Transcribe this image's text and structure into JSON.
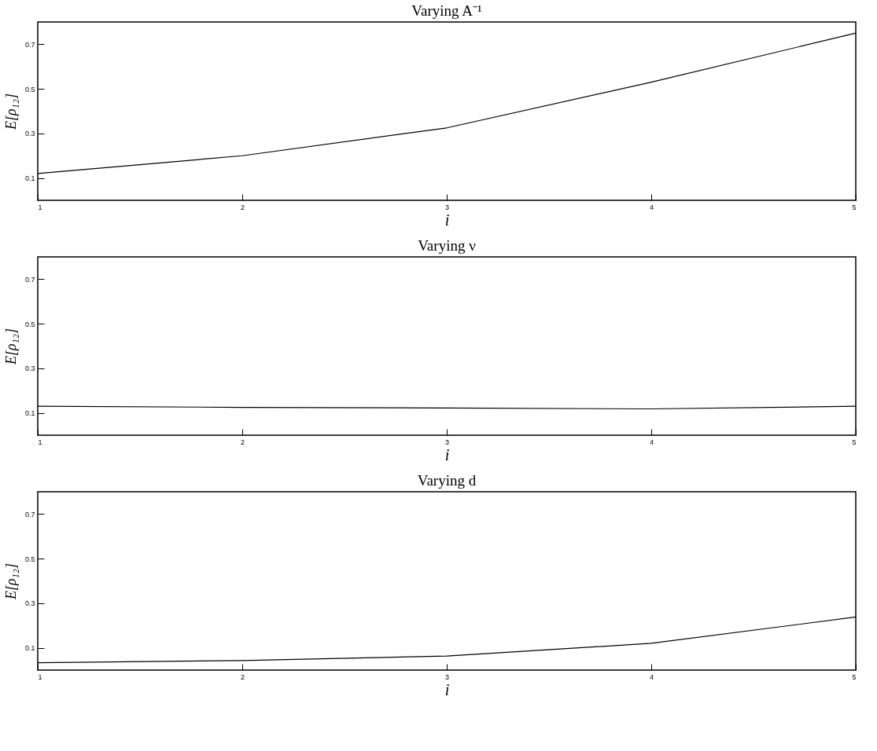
{
  "chart_data": [
    {
      "type": "line",
      "title": "Varying A⁻¹",
      "xlabel": "i",
      "ylabel": "E[ρ₁₂]",
      "x": [
        1,
        2,
        3,
        4,
        5
      ],
      "xlim": [
        1,
        5
      ],
      "xticks": [
        1,
        2,
        3,
        4,
        5
      ],
      "ylim": [
        0,
        0.8
      ],
      "yticks": [
        0.1,
        0.3,
        0.5,
        0.7
      ],
      "series": [
        {
          "color": "#000000",
          "values": [
            0.12,
            0.2,
            0.325,
            0.53,
            0.75
          ]
        }
      ]
    },
    {
      "type": "line",
      "title": "Varying ν",
      "xlabel": "i",
      "ylabel": "E[ρ₁₂]",
      "x": [
        1,
        2,
        3,
        4,
        5
      ],
      "xlim": [
        1,
        5
      ],
      "xticks": [
        1,
        2,
        3,
        4,
        5
      ],
      "ylim": [
        0,
        0.8
      ],
      "yticks": [
        0.1,
        0.3,
        0.5,
        0.7
      ],
      "series": [
        {
          "color": "#000000",
          "values": [
            0.13,
            0.125,
            0.122,
            0.118,
            0.13
          ]
        }
      ]
    },
    {
      "type": "line",
      "title": "Varying d",
      "xlabel": "i",
      "ylabel": "E[ρ₁₂]",
      "x": [
        1,
        2,
        3,
        4,
        5
      ],
      "xlim": [
        1,
        5
      ],
      "xticks": [
        1,
        2,
        3,
        4,
        5
      ],
      "ylim": [
        0,
        0.8
      ],
      "yticks": [
        0.1,
        0.3,
        0.5,
        0.7
      ],
      "series": [
        {
          "color": "#000000",
          "values": [
            0.033,
            0.043,
            0.063,
            0.12,
            0.238
          ]
        }
      ]
    }
  ]
}
